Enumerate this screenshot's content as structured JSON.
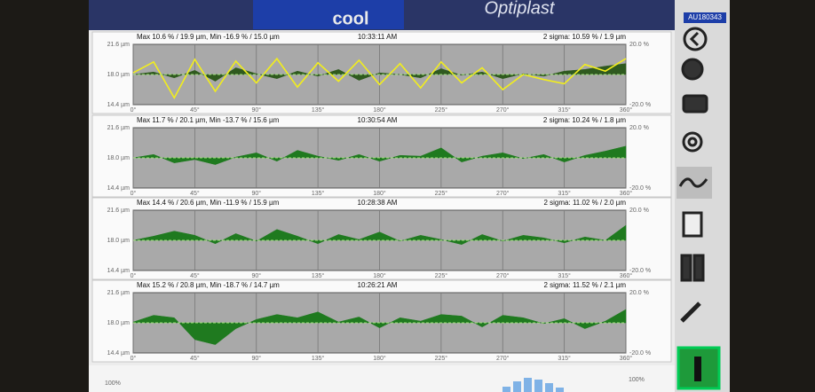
{
  "header": {
    "logo": "cool",
    "title": "Optiplast",
    "machine_id": "AU180343"
  },
  "bottom_panel": {
    "left_label": "100%",
    "right_label": "100%"
  },
  "chart_data": [
    {
      "type": "area",
      "title": "Max 10.6 % / 19.9 µm, Min -16.9 % / 15.0 µm",
      "subtitle": "10:33:11 AM",
      "annotation": "2 sigma: 10.59 % / 1.9 µm",
      "x": [
        0,
        15,
        30,
        45,
        60,
        75,
        90,
        105,
        120,
        135,
        150,
        165,
        180,
        195,
        210,
        225,
        240,
        255,
        270,
        285,
        300,
        315,
        330,
        345,
        360
      ],
      "series": [
        {
          "color": "#2f5a1f",
          "values": [
            18.0,
            18.3,
            17.6,
            18.5,
            17.2,
            18.8,
            18.1,
            17.5,
            18.4,
            17.8,
            18.6,
            17.3,
            18.2,
            18.0,
            17.6,
            18.7,
            17.9,
            18.3,
            17.5,
            18.1,
            17.8,
            18.4,
            18.6,
            19.0,
            19.3
          ]
        },
        {
          "color": "#f2ee1c",
          "line": true,
          "values": [
            18.2,
            19.5,
            15.2,
            19.8,
            16.0,
            19.6,
            17.0,
            19.9,
            16.5,
            19.4,
            17.2,
            19.7,
            16.8,
            19.3,
            16.4,
            19.5,
            17.0,
            18.8,
            16.2,
            18.0,
            17.4,
            16.9,
            19.2,
            18.4,
            19.9
          ]
        }
      ],
      "xlim": [
        0,
        360
      ],
      "ylim": [
        14.4,
        21.6
      ],
      "y2lim": [
        -20,
        20
      ],
      "xticks": [
        {
          "value": 0,
          "label": "0°"
        },
        {
          "value": 45,
          "label": "45°"
        },
        {
          "value": 90,
          "label": "90°"
        },
        {
          "value": 135,
          "label": "135°"
        },
        {
          "value": 180,
          "label": "180°"
        },
        {
          "value": 225,
          "label": "225°"
        },
        {
          "value": 270,
          "label": "270°"
        },
        {
          "value": 315,
          "label": "315°"
        },
        {
          "value": 360,
          "label": "360°"
        }
      ],
      "yticks": [
        {
          "value": 21.6,
          "label": "21.6 µm"
        },
        {
          "value": 18.0,
          "label": "18.0 µm"
        },
        {
          "value": 14.4,
          "label": "14.4 µm"
        }
      ],
      "y2ticks": [
        {
          "value": 20,
          "label": "20.0 %"
        },
        {
          "value": -20,
          "label": "-20.0 %"
        }
      ]
    },
    {
      "type": "area",
      "title": "Max 11.7 % / 20.1 µm, Min -13.7 % / 15.6 µm",
      "subtitle": "10:30:54 AM",
      "annotation": "2 sigma: 10.24 % / 1.8 µm",
      "x": [
        0,
        15,
        30,
        45,
        60,
        75,
        90,
        105,
        120,
        135,
        150,
        165,
        180,
        195,
        210,
        225,
        240,
        255,
        270,
        285,
        300,
        315,
        330,
        345,
        360
      ],
      "series": [
        {
          "color": "#1f7a1f",
          "values": [
            18.0,
            18.4,
            17.4,
            17.8,
            17.2,
            18.1,
            18.6,
            17.6,
            18.9,
            18.2,
            17.7,
            18.4,
            17.6,
            18.3,
            18.2,
            19.2,
            17.5,
            18.2,
            18.6,
            17.9,
            18.4,
            17.5,
            18.3,
            18.8,
            19.4
          ]
        }
      ],
      "xlim": [
        0,
        360
      ],
      "ylim": [
        14.4,
        21.6
      ],
      "y2lim": [
        -20,
        20
      ],
      "xticks": [
        {
          "value": 0,
          "label": "0°"
        },
        {
          "value": 45,
          "label": "45°"
        },
        {
          "value": 90,
          "label": "90°"
        },
        {
          "value": 135,
          "label": "135°"
        },
        {
          "value": 180,
          "label": "180°"
        },
        {
          "value": 225,
          "label": "225°"
        },
        {
          "value": 270,
          "label": "270°"
        },
        {
          "value": 315,
          "label": "315°"
        },
        {
          "value": 360,
          "label": "360°"
        }
      ],
      "yticks": [
        {
          "value": 21.6,
          "label": "21.6 µm"
        },
        {
          "value": 18.0,
          "label": "18.0 µm"
        },
        {
          "value": 14.4,
          "label": "14.4 µm"
        }
      ],
      "y2ticks": [
        {
          "value": 20,
          "label": "20.0 %"
        },
        {
          "value": -20,
          "label": "-20.0 %"
        }
      ]
    },
    {
      "type": "area",
      "title": "Max 14.4 % / 20.6 µm, Min -11.9 % / 15.9 µm",
      "subtitle": "10:28:38 AM",
      "annotation": "2 sigma: 11.02 % / 2.0 µm",
      "x": [
        0,
        15,
        30,
        45,
        60,
        75,
        90,
        105,
        120,
        135,
        150,
        165,
        180,
        195,
        210,
        225,
        240,
        255,
        270,
        285,
        300,
        315,
        330,
        345,
        360
      ],
      "series": [
        {
          "color": "#1f7a1f",
          "values": [
            18.0,
            18.5,
            19.1,
            18.6,
            17.6,
            18.8,
            17.9,
            19.3,
            18.5,
            17.6,
            18.7,
            18.1,
            19.0,
            17.9,
            18.6,
            18.1,
            17.5,
            18.7,
            17.9,
            18.6,
            18.3,
            17.7,
            18.4,
            18.0,
            19.8
          ]
        }
      ],
      "xlim": [
        0,
        360
      ],
      "ylim": [
        14.4,
        21.6
      ],
      "y2lim": [
        -20,
        20
      ],
      "xticks": [
        {
          "value": 0,
          "label": "0°"
        },
        {
          "value": 45,
          "label": "45°"
        },
        {
          "value": 90,
          "label": "90°"
        },
        {
          "value": 135,
          "label": "135°"
        },
        {
          "value": 180,
          "label": "180°"
        },
        {
          "value": 225,
          "label": "225°"
        },
        {
          "value": 270,
          "label": "270°"
        },
        {
          "value": 315,
          "label": "315°"
        },
        {
          "value": 360,
          "label": "360°"
        }
      ],
      "yticks": [
        {
          "value": 21.6,
          "label": "21.6 µm"
        },
        {
          "value": 18.0,
          "label": "18.0 µm"
        },
        {
          "value": 14.4,
          "label": "14.4 µm"
        }
      ],
      "y2ticks": [
        {
          "value": 20,
          "label": "20.0 %"
        },
        {
          "value": -20,
          "label": "-20.0 %"
        }
      ]
    },
    {
      "type": "area",
      "title": "Max 15.2 % / 20.8 µm, Min -18.7 % / 14.7 µm",
      "subtitle": "10:26:21 AM",
      "annotation": "2 sigma: 11.52 % / 2.1 µm",
      "x": [
        0,
        15,
        30,
        45,
        60,
        75,
        90,
        105,
        120,
        135,
        150,
        165,
        180,
        195,
        210,
        225,
        240,
        255,
        270,
        285,
        300,
        315,
        330,
        345,
        360
      ],
      "series": [
        {
          "color": "#1f7a1f",
          "values": [
            18.1,
            18.9,
            18.6,
            16.0,
            15.4,
            17.3,
            18.4,
            19.0,
            18.6,
            19.3,
            18.1,
            18.7,
            17.4,
            18.6,
            18.2,
            19.0,
            18.8,
            17.5,
            18.9,
            18.6,
            17.9,
            18.5,
            17.3,
            18.2,
            19.6
          ]
        }
      ],
      "xlim": [
        0,
        360
      ],
      "ylim": [
        14.4,
        21.6
      ],
      "y2lim": [
        -20,
        20
      ],
      "xticks": [
        {
          "value": 0,
          "label": "0°"
        },
        {
          "value": 45,
          "label": "45°"
        },
        {
          "value": 90,
          "label": "90°"
        },
        {
          "value": 135,
          "label": "135°"
        },
        {
          "value": 180,
          "label": "180°"
        },
        {
          "value": 225,
          "label": "225°"
        },
        {
          "value": 270,
          "label": "270°"
        },
        {
          "value": 315,
          "label": "315°"
        },
        {
          "value": 360,
          "label": "360°"
        }
      ],
      "yticks": [
        {
          "value": 21.6,
          "label": "21.6 µm"
        },
        {
          "value": 18.0,
          "label": "18.0 µm"
        },
        {
          "value": 14.4,
          "label": "14.4 µm"
        }
      ],
      "y2ticks": [
        {
          "value": 20,
          "label": "20.0 %"
        },
        {
          "value": -20,
          "label": "-20.0 %"
        }
      ]
    }
  ]
}
